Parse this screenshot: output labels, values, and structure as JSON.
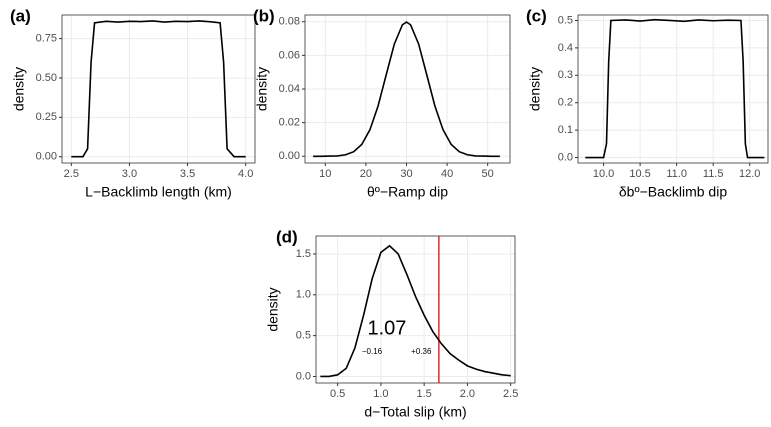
{
  "chart_data": [
    {
      "type": "line",
      "title": "(a)",
      "xlabel": "L−Backlimb length (km)",
      "ylabel": "density",
      "color": "#000000",
      "grid": true,
      "x": [
        2.5,
        2.6,
        2.64,
        2.67,
        2.7,
        2.8,
        2.9,
        3.0,
        3.1,
        3.2,
        3.3,
        3.4,
        3.5,
        3.6,
        3.7,
        3.78,
        3.81,
        3.84,
        3.9,
        4.0
      ],
      "values": [
        0,
        0,
        0.05,
        0.6,
        0.85,
        0.86,
        0.855,
        0.86,
        0.858,
        0.862,
        0.855,
        0.86,
        0.858,
        0.862,
        0.857,
        0.85,
        0.6,
        0.05,
        0,
        0
      ],
      "xlim": [
        2.42,
        4.08
      ],
      "ylim": [
        -0.04,
        0.9
      ],
      "xticks": [
        2.5,
        {
          "value": 3,
          "label": "3.0"
        },
        3.5,
        {
          "value": 4,
          "label": "4.0"
        }
      ],
      "yticks": [
        {
          "value": 0,
          "label": "0.00"
        },
        0.25,
        {
          "value": 0.5,
          "label": "0.50"
        },
        0.75
      ]
    },
    {
      "type": "line",
      "title": "(b)",
      "xlabel": "θº−Ramp dip",
      "ylabel": "density",
      "color": "#000000",
      "grid": true,
      "x": [
        7,
        9,
        11,
        13,
        15,
        17,
        19,
        21,
        23,
        25,
        27,
        29,
        30,
        31,
        33,
        35,
        37,
        39,
        41,
        43,
        45,
        47,
        49,
        51,
        53
      ],
      "values": [
        0,
        0,
        0.0001,
        0.0002,
        0.0009,
        0.0027,
        0.0071,
        0.0158,
        0.0299,
        0.0484,
        0.0667,
        0.0782,
        0.0798,
        0.0782,
        0.0667,
        0.0484,
        0.0299,
        0.0158,
        0.0071,
        0.0027,
        0.0009,
        0.0002,
        0.0001,
        0,
        0
      ],
      "xlim": [
        5,
        55.5
      ],
      "ylim": [
        -0.004,
        0.084
      ],
      "xticks": [
        10,
        20,
        30,
        40,
        50
      ],
      "yticks": [
        {
          "value": 0,
          "label": "0.00"
        },
        0.02,
        0.04,
        0.06,
        0.08
      ]
    },
    {
      "type": "line",
      "title": "(c)",
      "xlabel": "δbº−Backlimb dip",
      "ylabel": "density",
      "color": "#000000",
      "grid": true,
      "x": [
        9.75,
        10.0,
        10.04,
        10.07,
        10.1,
        10.3,
        10.5,
        10.7,
        10.9,
        11.1,
        11.3,
        11.5,
        11.7,
        11.88,
        11.91,
        11.94,
        11.97,
        12.2
      ],
      "values": [
        0,
        0,
        0.05,
        0.35,
        0.5,
        0.502,
        0.498,
        0.503,
        0.5,
        0.497,
        0.502,
        0.499,
        0.501,
        0.5,
        0.35,
        0.05,
        0,
        0
      ],
      "xlim": [
        9.65,
        12.25
      ],
      "ylim": [
        -0.02,
        0.52
      ],
      "xticks": [
        {
          "value": 10,
          "label": "10.0"
        },
        10.5,
        {
          "value": 11,
          "label": "11.0"
        },
        11.5,
        {
          "value": 12,
          "label": "12.0"
        }
      ],
      "yticks": [
        {
          "value": 0,
          "label": "0.0"
        },
        0.1,
        0.2,
        0.3,
        0.4,
        0.5
      ]
    },
    {
      "type": "line",
      "title": "(d)",
      "xlabel": "d−Total slip (km)",
      "ylabel": "density",
      "color": "#000000",
      "grid": true,
      "x": [
        0.3,
        0.4,
        0.5,
        0.6,
        0.7,
        0.8,
        0.9,
        1.0,
        1.1,
        1.2,
        1.3,
        1.4,
        1.5,
        1.6,
        1.7,
        1.8,
        1.9,
        2.0,
        2.1,
        2.2,
        2.3,
        2.4,
        2.5
      ],
      "values": [
        0,
        0,
        0.02,
        0.1,
        0.35,
        0.75,
        1.2,
        1.52,
        1.6,
        1.5,
        1.25,
        0.98,
        0.75,
        0.55,
        0.4,
        0.28,
        0.2,
        0.13,
        0.09,
        0.06,
        0.04,
        0.02,
        0.01
      ],
      "xlim": [
        0.25,
        2.55
      ],
      "ylim": [
        -0.08,
        1.72
      ],
      "xticks": [
        0.5,
        {
          "value": 1,
          "label": "1.0"
        },
        1.5,
        {
          "value": 2,
          "label": "2.0"
        },
        2.5
      ],
      "yticks": [
        {
          "value": 0,
          "label": "0.0"
        },
        0.5,
        {
          "value": 1,
          "label": "1.0"
        },
        1.5
      ],
      "vline": 1.67,
      "vline_color": "#e41a1c",
      "annotations": [
        "1.07",
        "−0.16",
        "+0.36"
      ]
    }
  ]
}
